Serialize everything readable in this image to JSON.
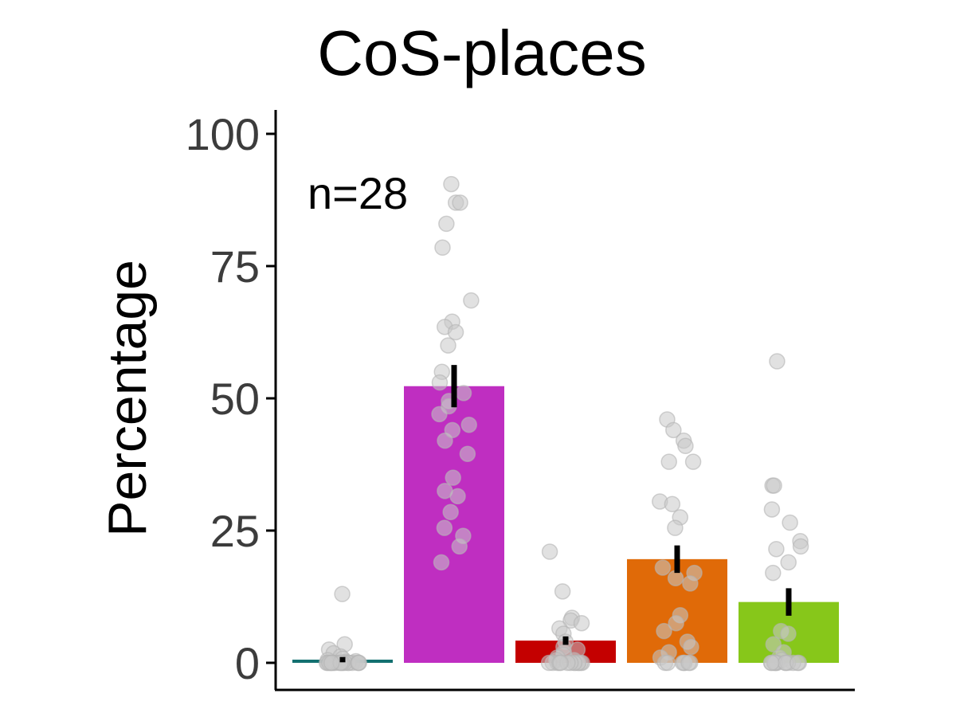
{
  "chart_data": {
    "type": "bar",
    "title": "CoS-places",
    "xlabel": "",
    "ylabel": "Percentage",
    "annotation": "n=28",
    "ylim": [
      0,
      105
    ],
    "yticks": [
      "0",
      "25",
      "50",
      "75",
      "100"
    ],
    "grid": false,
    "legend": "none",
    "categories": [
      "",
      "",
      "",
      "",
      ""
    ],
    "values": [
      0.6,
      52.3,
      4.2,
      19.6,
      11.5
    ],
    "errors": [
      0.5,
      4.0,
      0.8,
      2.6,
      2.6
    ],
    "colors": [
      "#137070",
      "#bf2ec1",
      "#c40000",
      "#e06a08",
      "#87c71a"
    ],
    "points": [
      [
        13.0,
        3.5,
        2.5,
        1.8,
        1.2,
        0.8,
        0.5,
        0.3,
        0.2,
        0,
        0,
        0,
        0,
        0,
        0,
        0,
        0,
        0,
        0,
        0,
        0,
        0,
        0,
        0,
        0,
        0,
        0,
        0
      ],
      [
        90.5,
        87,
        87,
        83,
        78.5,
        68.5,
        64.5,
        63.5,
        62.5,
        60,
        55,
        51,
        49.5,
        48.5,
        47,
        45,
        42,
        39.5,
        35,
        32.5,
        31.5,
        28.5,
        24,
        22,
        19,
        25.5,
        44,
        53
      ],
      [
        21,
        13.5,
        8.5,
        8,
        7.5,
        6.5,
        5.5,
        4,
        3,
        2.5,
        2,
        1.5,
        1,
        0.5,
        0.5,
        0,
        0,
        0,
        0,
        0,
        0,
        0,
        0,
        0,
        0,
        0,
        0,
        0
      ],
      [
        46,
        44,
        42,
        41,
        38,
        38,
        30.5,
        30,
        27.5,
        25.5,
        18,
        17,
        16,
        15,
        9,
        7.5,
        6,
        4,
        3,
        2,
        1,
        0,
        0,
        0,
        0,
        0,
        0,
        0
      ],
      [
        57,
        33.5,
        33.5,
        29,
        26.5,
        23,
        22,
        21.5,
        19,
        17,
        6,
        5.5,
        3.5,
        2,
        1,
        0.5,
        0,
        0,
        0,
        0,
        0,
        0,
        0,
        0,
        0,
        0,
        0,
        0
      ]
    ]
  }
}
